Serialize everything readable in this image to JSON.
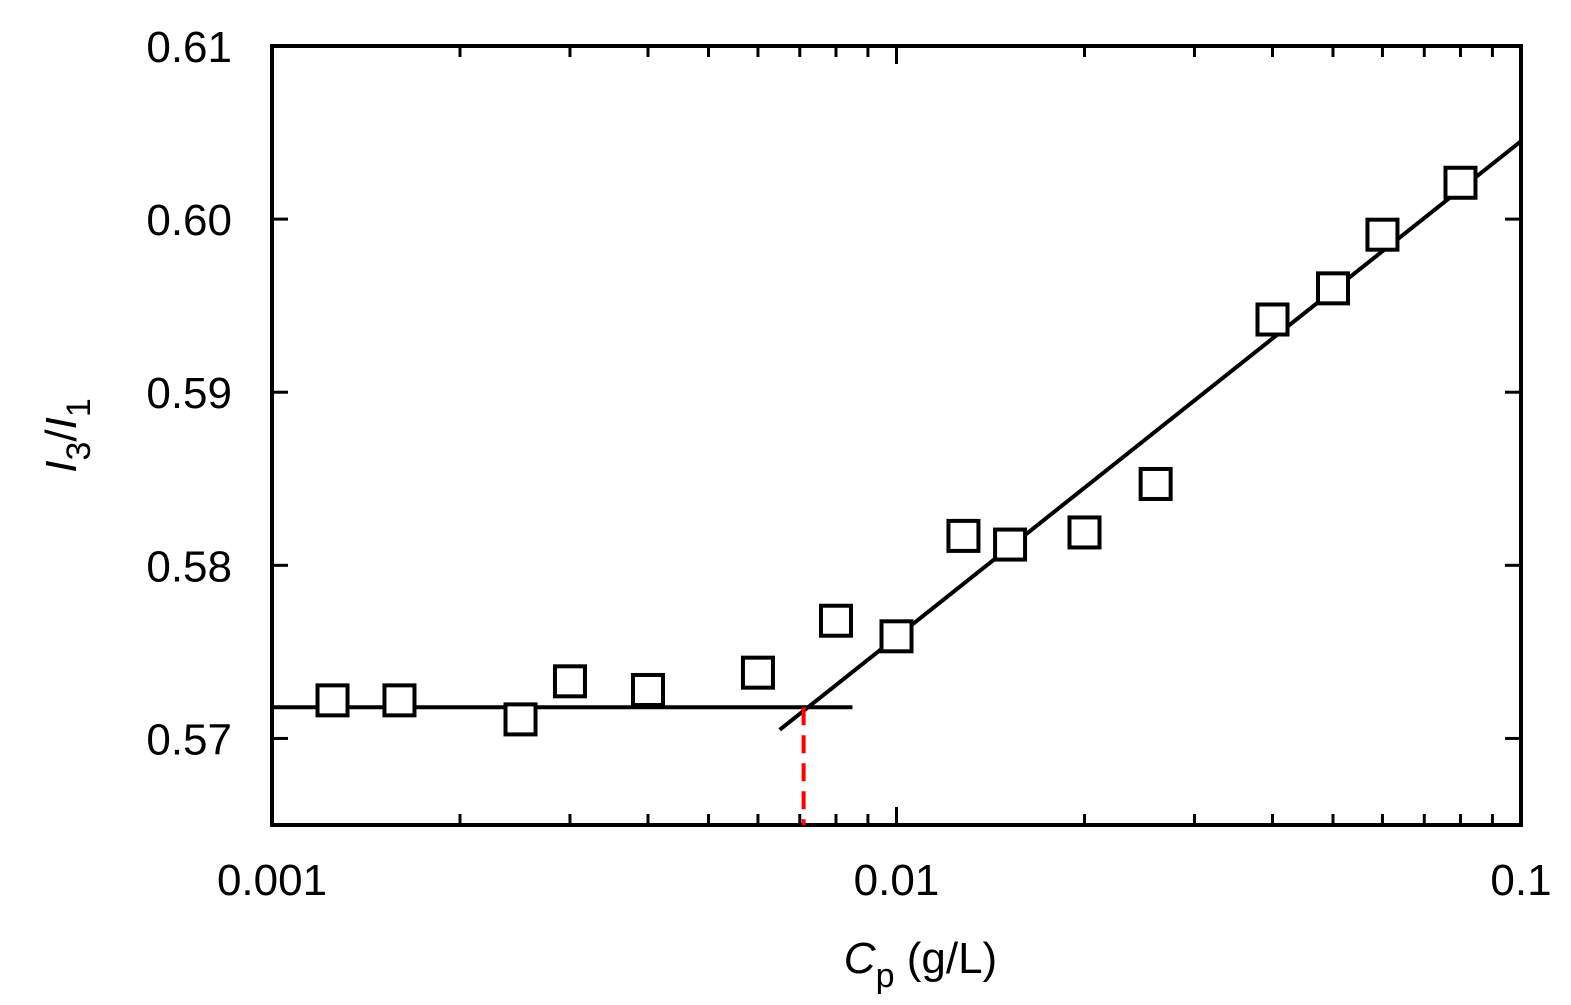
{
  "chart_data": {
    "type": "scatter",
    "x_scale": "log",
    "xlim": [
      0.001,
      0.1
    ],
    "ylim": [
      0.565,
      0.61
    ],
    "x_ticks": [
      0.001,
      0.01,
      0.1
    ],
    "x_tick_labels": [
      "0.001",
      "0.01",
      "0.1"
    ],
    "y_ticks": [
      0.57,
      0.58,
      0.59,
      0.6,
      0.61
    ],
    "y_tick_labels": [
      "0.57",
      "0.58",
      "0.59",
      "0.60",
      "0.61"
    ],
    "xlabel": {
      "main": "C",
      "sub": "p",
      "rest": " (g/L)"
    },
    "ylabel": {
      "a": "I",
      "a_sub": "3",
      "slash": "/",
      "b": "I",
      "b_sub": "1"
    },
    "grid": false,
    "legend": "none",
    "series": [
      {
        "marker": "open-square",
        "color": "#000000",
        "points": [
          {
            "x": 0.00125,
            "y": 0.5722
          },
          {
            "x": 0.0016,
            "y": 0.5722
          },
          {
            "x": 0.0025,
            "y": 0.5711
          },
          {
            "x": 0.003,
            "y": 0.5733
          },
          {
            "x": 0.004,
            "y": 0.5728
          },
          {
            "x": 0.006,
            "y": 0.5738
          },
          {
            "x": 0.008,
            "y": 0.5768
          },
          {
            "x": 0.01,
            "y": 0.5759
          },
          {
            "x": 0.0128,
            "y": 0.5817
          },
          {
            "x": 0.0152,
            "y": 0.5812
          },
          {
            "x": 0.02,
            "y": 0.5819
          },
          {
            "x": 0.026,
            "y": 0.5847
          },
          {
            "x": 0.04,
            "y": 0.5942
          },
          {
            "x": 0.05,
            "y": 0.596
          },
          {
            "x": 0.06,
            "y": 0.5991
          },
          {
            "x": 0.08,
            "y": 0.6021
          }
        ]
      }
    ],
    "fit_lines": [
      {
        "color": "#000000",
        "x1": 0.001,
        "y1": 0.5718,
        "x2": 0.0085,
        "y2": 0.5718
      },
      {
        "color": "#000000",
        "x1": 0.0065,
        "y1": 0.5705,
        "x2": 0.1,
        "y2": 0.6045
      }
    ],
    "marker_line": {
      "color": "#ff0000",
      "style": "dashed",
      "x": 0.0071,
      "y_from": 0.5718,
      "y_to": 0.565
    }
  }
}
